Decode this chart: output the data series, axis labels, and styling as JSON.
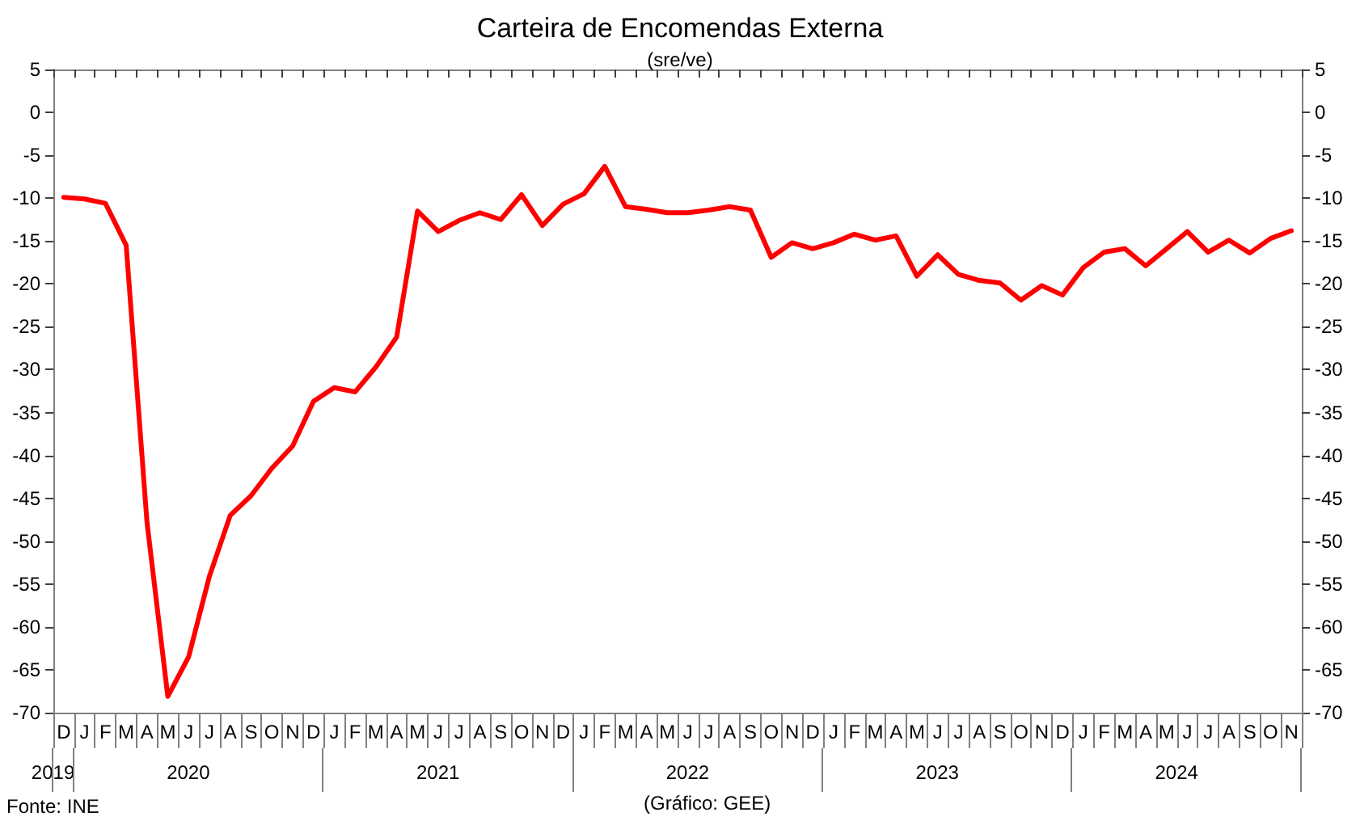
{
  "chart_data": {
    "type": "line",
    "title": "Carteira de Encomendas Externa",
    "subtitle": "(sre/ve)",
    "categories": [
      "D",
      "J",
      "F",
      "M",
      "A",
      "M",
      "J",
      "J",
      "A",
      "S",
      "O",
      "N",
      "D",
      "J",
      "F",
      "M",
      "A",
      "M",
      "J",
      "J",
      "A",
      "S",
      "O",
      "N",
      "D",
      "J",
      "F",
      "M",
      "A",
      "M",
      "J",
      "J",
      "A",
      "S",
      "O",
      "N",
      "D",
      "J",
      "F",
      "M",
      "A",
      "M",
      "J",
      "J",
      "A",
      "S",
      "O",
      "N",
      "D",
      "J",
      "F",
      "M",
      "A",
      "M",
      "J",
      "J",
      "A",
      "S",
      "O",
      "N"
    ],
    "series": [
      {
        "color": "#ff0000",
        "values": [
          -9.9,
          -10.1,
          -10.6,
          -15.5,
          -47.8,
          -68.1,
          -63.5,
          -54.1,
          -47.0,
          -44.7,
          -41.5,
          -38.9,
          -33.7,
          -32.1,
          -32.6,
          -29.7,
          -26.2,
          -11.5,
          -13.9,
          -12.6,
          -11.7,
          -12.5,
          -9.6,
          -13.2,
          -10.7,
          -9.5,
          -6.3,
          -11.0,
          -11.3,
          -11.7,
          -11.7,
          -11.4,
          -11.0,
          -11.4,
          -16.9,
          -15.2,
          -15.9,
          -15.2,
          -14.2,
          -14.9,
          -14.4,
          -19.1,
          -16.6,
          -18.9,
          -19.6,
          -19.9,
          -21.9,
          -20.2,
          -21.3,
          -18.1,
          -16.3,
          -15.9,
          -17.9,
          -15.9,
          -13.9,
          -16.3,
          -14.9,
          -16.4,
          -14.7,
          -13.8
        ]
      }
    ],
    "ylim": [
      -70,
      5
    ],
    "yticks": [
      -70,
      -65,
      -60,
      -55,
      -50,
      -45,
      -40,
      -35,
      -30,
      -25,
      -20,
      -15,
      -10,
      -5,
      0,
      5
    ],
    "y2lim": [
      -70,
      5
    ],
    "y2ticks": [
      -70,
      -65,
      -60,
      -55,
      -50,
      -45,
      -40,
      -35,
      -30,
      -25,
      -20,
      -15,
      -10,
      -5,
      0,
      5
    ],
    "grid": false,
    "marker": "none",
    "line_style": "solid",
    "annotations": [
      "2019",
      "2020",
      "2021",
      "2022",
      "2023",
      "2024",
      "Fonte: INE",
      "(Gráfico: GEE)"
    ]
  }
}
